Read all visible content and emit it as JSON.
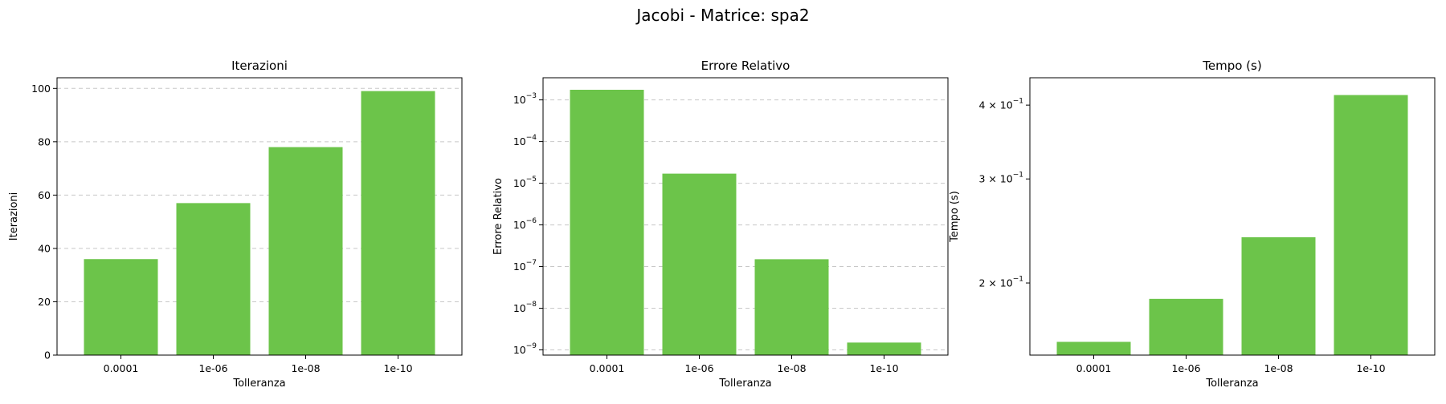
{
  "figure": {
    "suptitle": "Jacobi - Matrice: spa2",
    "bar_color": "#6cc44a",
    "grid_color": "#c8c8c8"
  },
  "chart_data": [
    {
      "type": "bar",
      "title": "Iterazioni",
      "xlabel": "Tolleranza",
      "ylabel": "Iterazioni",
      "categories": [
        "0.0001",
        "1e-06",
        "1e-08",
        "1e-10"
      ],
      "values": [
        36,
        57,
        78,
        99
      ],
      "yscale": "linear",
      "ylim": [
        0,
        104
      ],
      "yticks": [
        {
          "value": 0,
          "label": "0"
        },
        {
          "value": 20,
          "label": "20"
        },
        {
          "value": 40,
          "label": "40"
        },
        {
          "value": 60,
          "label": "60"
        },
        {
          "value": 80,
          "label": "80"
        },
        {
          "value": 100,
          "label": "100"
        }
      ],
      "grid": "y-dashed"
    },
    {
      "type": "bar",
      "title": "Errore Relativo",
      "xlabel": "Tolleranza",
      "ylabel": "Errore Relativo",
      "categories": [
        "0.0001",
        "1e-06",
        "1e-08",
        "1e-10"
      ],
      "values": [
        0.00175,
        1.7e-05,
        1.5e-07,
        1.5e-09
      ],
      "yscale": "log",
      "ylim": [
        7.5e-10,
        0.0034
      ],
      "yticks": [
        {
          "value": 1e-09,
          "label": "10",
          "exp": "−9"
        },
        {
          "value": 1e-08,
          "label": "10",
          "exp": "−8"
        },
        {
          "value": 1e-07,
          "label": "10",
          "exp": "−7"
        },
        {
          "value": 1e-06,
          "label": "10",
          "exp": "−6"
        },
        {
          "value": 1e-05,
          "label": "10",
          "exp": "−5"
        },
        {
          "value": 0.0001,
          "label": "10",
          "exp": "−4"
        },
        {
          "value": 0.001,
          "label": "10",
          "exp": "−3"
        }
      ],
      "grid": "y-dashed"
    },
    {
      "type": "bar",
      "title": "Tempo (s)",
      "xlabel": "Tolleranza",
      "ylabel": "Tempo (s)",
      "categories": [
        "0.0001",
        "1e-06",
        "1e-08",
        "1e-10"
      ],
      "values": [
        0.159,
        0.188,
        0.239,
        0.416
      ],
      "yscale": "log",
      "ylim": [
        0.151,
        0.445
      ],
      "yticks": [
        {
          "value": 0.2,
          "label": "2 × 10",
          "exp": "−1"
        },
        {
          "value": 0.3,
          "label": "3 × 10",
          "exp": "−1"
        },
        {
          "value": 0.4,
          "label": "4 × 10",
          "exp": "−1"
        }
      ],
      "grid": "none"
    }
  ]
}
